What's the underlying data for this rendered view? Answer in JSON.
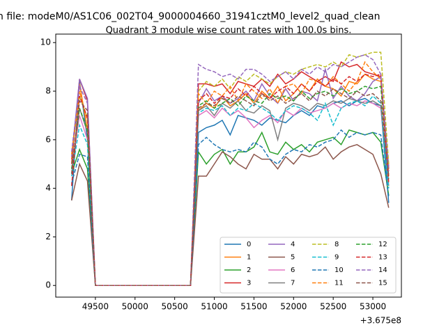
{
  "chart_data": {
    "type": "line",
    "suptitle": "n file: modeM0/AS1C06_002T04_9000004660_31941cztM0_level2_quad_clean",
    "title": "Quadrant 3 module wise count rates with 100.0s bins.",
    "x_offset_label": "+3.675e8",
    "x": [
      49200,
      49300,
      49400,
      49500,
      49600,
      49700,
      49800,
      49900,
      50000,
      50100,
      50200,
      50300,
      50400,
      50500,
      50600,
      50700,
      50800,
      50900,
      51000,
      51100,
      51200,
      51300,
      51400,
      51500,
      51600,
      51700,
      51800,
      51900,
      52000,
      52100,
      52200,
      52300,
      52400,
      52500,
      52600,
      52700,
      52800,
      52900,
      53000,
      53100,
      53200
    ],
    "xlim": [
      49000,
      53360
    ],
    "xticks": [
      49500,
      50000,
      50500,
      51000,
      51500,
      52000,
      52500,
      53000
    ],
    "ylim": [
      -0.48,
      10.35
    ],
    "yticks": [
      0,
      2,
      4,
      6,
      8,
      10
    ],
    "legend": "lower right",
    "legend_columns": 4,
    "series": [
      {
        "name": "0",
        "color": "#1f77b4",
        "dash": false,
        "values": [
          3.5,
          8.4,
          6.0,
          0,
          0,
          0,
          0,
          0,
          0,
          0,
          0,
          0,
          0,
          0,
          0,
          0,
          6.3,
          6.5,
          6.6,
          6.8,
          6.2,
          7.0,
          6.9,
          6.8,
          6.6,
          6.9,
          6.8,
          6.7,
          7.0,
          7.2,
          7.0,
          7.4,
          7.3,
          7.5,
          7.6,
          7.4,
          7.6,
          7.7,
          7.5,
          7.4,
          3.4
        ]
      },
      {
        "name": "1",
        "color": "#ff7f0e",
        "dash": false,
        "values": [
          5.2,
          8.3,
          6.4,
          0,
          0,
          0,
          0,
          0,
          0,
          0,
          0,
          0,
          0,
          0,
          0,
          0,
          7.2,
          7.5,
          7.3,
          7.8,
          7.4,
          7.6,
          7.9,
          7.5,
          8.0,
          7.7,
          8.2,
          7.6,
          7.9,
          8.3,
          8.0,
          8.5,
          8.2,
          8.1,
          7.8,
          8.4,
          8.3,
          8.7,
          8.5,
          8.4,
          4.5
        ]
      },
      {
        "name": "2",
        "color": "#2ca02c",
        "dash": false,
        "values": [
          4.6,
          5.6,
          4.8,
          0,
          0,
          0,
          0,
          0,
          0,
          0,
          0,
          0,
          0,
          0,
          0,
          0,
          5.5,
          5.0,
          5.4,
          5.6,
          5.0,
          5.5,
          5.5,
          5.7,
          6.3,
          5.5,
          5.4,
          5.9,
          5.6,
          5.8,
          5.5,
          5.9,
          6.0,
          6.1,
          5.8,
          6.4,
          6.3,
          6.2,
          6.3,
          5.9,
          3.7
        ]
      },
      {
        "name": "3",
        "color": "#d62728",
        "dash": false,
        "values": [
          5.0,
          8.5,
          7.6,
          0,
          0,
          0,
          0,
          0,
          0,
          0,
          0,
          0,
          0,
          0,
          0,
          0,
          8.3,
          8.3,
          8.2,
          8.3,
          7.9,
          8.4,
          8.3,
          8.2,
          8.5,
          8.2,
          8.7,
          8.3,
          8.5,
          8.8,
          8.6,
          8.4,
          8.6,
          8.4,
          9.2,
          9.0,
          9.1,
          8.8,
          8.7,
          8.6,
          4.8
        ]
      },
      {
        "name": "4",
        "color": "#9467bd",
        "dash": false,
        "values": [
          5.3,
          8.5,
          7.7,
          0,
          0,
          0,
          0,
          0,
          0,
          0,
          0,
          0,
          0,
          0,
          0,
          0,
          7.5,
          8.1,
          7.6,
          7.8,
          7.5,
          7.7,
          8.0,
          7.6,
          8.3,
          7.8,
          7.5,
          8.1,
          7.6,
          8.0,
          7.9,
          7.6,
          8.9,
          7.7,
          8.2,
          7.8,
          7.6,
          7.9,
          8.4,
          8.6,
          4.9
        ]
      },
      {
        "name": "5",
        "color": "#8c564b",
        "dash": false,
        "values": [
          3.5,
          5.0,
          4.3,
          0,
          0,
          0,
          0,
          0,
          0,
          0,
          0,
          0,
          0,
          0,
          0,
          0,
          4.5,
          4.5,
          5.0,
          5.5,
          5.3,
          5.0,
          4.8,
          5.4,
          5.2,
          5.2,
          4.8,
          5.3,
          5.0,
          5.4,
          5.3,
          5.4,
          5.7,
          5.2,
          5.5,
          5.7,
          5.8,
          5.6,
          5.4,
          4.6,
          3.2
        ]
      },
      {
        "name": "6",
        "color": "#e377c2",
        "dash": false,
        "values": [
          4.8,
          7.0,
          6.0,
          0,
          0,
          0,
          0,
          0,
          0,
          0,
          0,
          0,
          0,
          0,
          0,
          0,
          7.0,
          7.2,
          6.9,
          7.3,
          7.0,
          7.2,
          6.9,
          6.5,
          6.8,
          7.0,
          6.7,
          7.2,
          7.0,
          7.3,
          7.1,
          7.2,
          7.3,
          7.5,
          7.3,
          7.5,
          7.4,
          7.6,
          7.5,
          7.3,
          4.3
        ]
      },
      {
        "name": "7",
        "color": "#7f7f7f",
        "dash": false,
        "values": [
          4.6,
          7.3,
          6.3,
          0,
          0,
          0,
          0,
          0,
          0,
          0,
          0,
          0,
          0,
          0,
          0,
          0,
          7.2,
          7.4,
          7.0,
          7.5,
          7.3,
          7.6,
          7.2,
          7.1,
          7.4,
          7.2,
          6.0,
          7.3,
          7.5,
          7.4,
          7.2,
          7.5,
          7.4,
          7.6,
          7.5,
          7.7,
          7.6,
          7.5,
          7.6,
          7.4,
          4.1
        ]
      },
      {
        "name": "8",
        "color": "#bcbd22",
        "dash": true,
        "values": [
          5.4,
          7.8,
          6.9,
          0,
          0,
          0,
          0,
          0,
          0,
          0,
          0,
          0,
          0,
          0,
          0,
          0,
          8.0,
          8.4,
          8.2,
          8.5,
          8.1,
          8.6,
          8.4,
          8.7,
          8.5,
          8.3,
          8.6,
          8.8,
          8.7,
          8.9,
          9.0,
          9.1,
          9.0,
          9.2,
          9.0,
          9.5,
          9.4,
          9.5,
          9.6,
          9.6,
          5.0
        ]
      },
      {
        "name": "9",
        "color": "#17becf",
        "dash": true,
        "values": [
          4.5,
          6.6,
          5.8,
          0,
          0,
          0,
          0,
          0,
          0,
          0,
          0,
          0,
          0,
          0,
          0,
          0,
          7.1,
          7.3,
          7.2,
          7.4,
          7.0,
          7.3,
          7.2,
          7.5,
          7.3,
          7.1,
          6.8,
          7.2,
          7.4,
          7.3,
          7.1,
          6.8,
          7.5,
          6.6,
          7.3,
          7.5,
          7.6,
          7.4,
          7.8,
          7.5,
          4.0
        ]
      },
      {
        "name": "10",
        "color": "#1f77b4",
        "dash": true,
        "values": [
          4.2,
          5.4,
          5.3,
          0,
          0,
          0,
          0,
          0,
          0,
          0,
          0,
          0,
          0,
          0,
          0,
          0,
          5.8,
          6.1,
          5.8,
          5.6,
          5.5,
          5.6,
          5.5,
          5.9,
          5.7,
          5.2,
          5.0,
          5.4,
          5.6,
          5.5,
          5.8,
          5.7,
          5.9,
          6.0,
          6.4,
          6.1,
          6.3,
          6.2,
          6.3,
          6.2,
          3.6
        ]
      },
      {
        "name": "11",
        "color": "#ff7f0e",
        "dash": true,
        "values": [
          5.4,
          8.0,
          6.8,
          0,
          0,
          0,
          0,
          0,
          0,
          0,
          0,
          0,
          0,
          0,
          0,
          0,
          7.9,
          7.5,
          8.0,
          7.8,
          8.2,
          7.6,
          8.3,
          8.0,
          7.7,
          8.1,
          7.5,
          8.2,
          8.3,
          7.9,
          8.5,
          8.4,
          8.2,
          8.6,
          8.3,
          8.0,
          8.4,
          9.2,
          8.8,
          8.5,
          4.6
        ]
      },
      {
        "name": "12",
        "color": "#2ca02c",
        "dash": true,
        "values": [
          4.8,
          7.3,
          6.4,
          0,
          0,
          0,
          0,
          0,
          0,
          0,
          0,
          0,
          0,
          0,
          0,
          0,
          7.4,
          7.6,
          7.3,
          7.5,
          7.7,
          7.4,
          7.8,
          7.6,
          7.5,
          7.9,
          7.7,
          7.8,
          7.6,
          8.0,
          7.7,
          7.9,
          8.0,
          7.8,
          8.1,
          7.9,
          8.0,
          8.2,
          8.1,
          8.2,
          4.4
        ]
      },
      {
        "name": "13",
        "color": "#d62728",
        "dash": true,
        "values": [
          4.1,
          7.8,
          6.9,
          0,
          0,
          0,
          0,
          0,
          0,
          0,
          0,
          0,
          0,
          0,
          0,
          0,
          7.6,
          7.9,
          7.5,
          7.8,
          7.7,
          8.1,
          7.8,
          8.2,
          7.9,
          7.7,
          8.0,
          8.2,
          7.9,
          8.3,
          8.0,
          8.4,
          8.2,
          8.5,
          8.3,
          8.6,
          8.4,
          8.7,
          8.6,
          8.7,
          4.2
        ]
      },
      {
        "name": "14",
        "color": "#9467bd",
        "dash": true,
        "values": [
          5.5,
          8.2,
          7.5,
          0,
          0,
          0,
          0,
          0,
          0,
          0,
          0,
          0,
          0,
          0,
          0,
          0,
          9.1,
          8.9,
          8.8,
          8.6,
          8.7,
          8.5,
          8.9,
          8.9,
          8.7,
          8.4,
          8.6,
          8.8,
          8.5,
          8.9,
          8.7,
          9.0,
          8.8,
          9.1,
          9.0,
          9.2,
          9.4,
          9.5,
          9.3,
          8.7,
          4.7
        ]
      },
      {
        "name": "15",
        "color": "#8c564b",
        "dash": true,
        "values": [
          4.6,
          7.6,
          7.2,
          0,
          0,
          0,
          0,
          0,
          0,
          0,
          0,
          0,
          0,
          0,
          0,
          0,
          7.3,
          7.5,
          7.4,
          7.7,
          7.5,
          7.8,
          7.6,
          7.4,
          7.9,
          7.6,
          7.8,
          7.5,
          7.7,
          7.9,
          7.6,
          8.0,
          7.8,
          8.1,
          7.9,
          7.7,
          8.0,
          7.8,
          7.9,
          7.6,
          4.5
        ]
      }
    ]
  }
}
